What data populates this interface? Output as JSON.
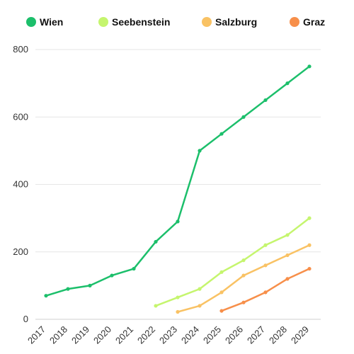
{
  "chart_data": {
    "type": "line",
    "title": "",
    "xlabel": "",
    "ylabel": "",
    "x": [
      "2017",
      "2018",
      "2019",
      "2020",
      "2021",
      "2022",
      "2023",
      "2024",
      "2025",
      "2026",
      "2027",
      "2028",
      "2029"
    ],
    "ylim": [
      0,
      800
    ],
    "yticks": [
      0,
      200,
      400,
      600,
      800
    ],
    "grid": true,
    "legend_position": "top",
    "series": [
      {
        "name": "Wien",
        "color": "#1cbf6b",
        "values": [
          70,
          90,
          100,
          130,
          150,
          230,
          290,
          500,
          550,
          600,
          650,
          700,
          750
        ]
      },
      {
        "name": "Seebenstein",
        "color": "#c5f56e",
        "values": [
          null,
          null,
          null,
          null,
          null,
          40,
          65,
          90,
          140,
          175,
          220,
          250,
          300
        ]
      },
      {
        "name": "Salzburg",
        "color": "#f9c264",
        "values": [
          null,
          null,
          null,
          null,
          null,
          null,
          22,
          40,
          80,
          130,
          160,
          190,
          220
        ]
      },
      {
        "name": "Graz",
        "color": "#f78f4a",
        "values": [
          null,
          null,
          null,
          null,
          null,
          null,
          null,
          null,
          25,
          50,
          80,
          120,
          150
        ]
      }
    ]
  }
}
